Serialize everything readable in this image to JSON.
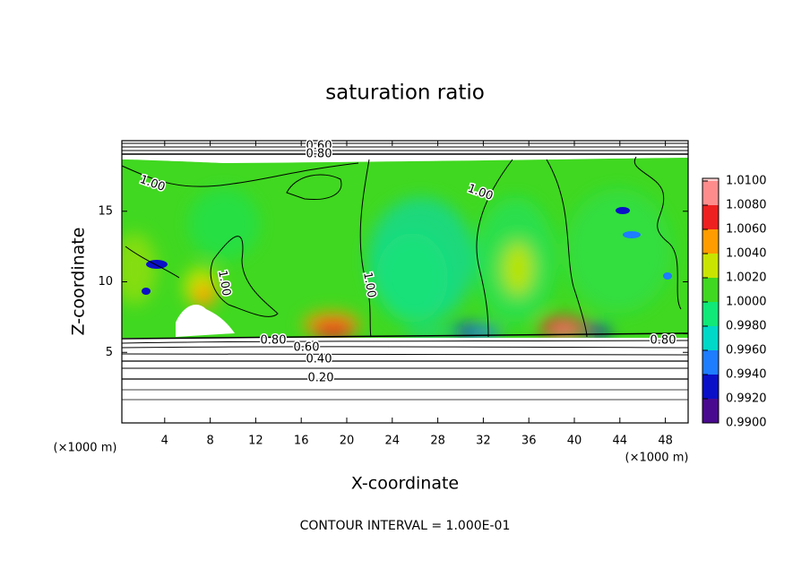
{
  "chart_data": {
    "type": "contour",
    "title": "saturation ratio",
    "x_label": "X-coordinate",
    "y_label": "Z-coordinate",
    "y_unit": "(×1000 m)",
    "x_unit": "(×1000 m)",
    "xlim": [
      0,
      50
    ],
    "xticks": [
      4,
      8,
      12,
      16,
      20,
      24,
      28,
      32,
      36,
      40,
      44,
      48
    ],
    "ylim": [
      0,
      20
    ],
    "yticks": [
      5,
      10,
      15
    ],
    "colorbar": {
      "levels": [
        {
          "value": 0.99,
          "label": "0.9900"
        },
        {
          "value": 0.992,
          "label": "0.9920"
        },
        {
          "value": 0.994,
          "label": "0.9940"
        },
        {
          "value": 0.996,
          "label": "0.9960"
        },
        {
          "value": 0.998,
          "label": "0.9980"
        },
        {
          "value": 1.0,
          "label": "1.0000"
        },
        {
          "value": 1.002,
          "label": "1.0020"
        },
        {
          "value": 1.004,
          "label": "1.0040"
        },
        {
          "value": 1.006,
          "label": "1.0060"
        },
        {
          "value": 1.008,
          "label": "1.0080"
        },
        {
          "value": 1.01,
          "label": "1.0100"
        }
      ],
      "colors": [
        "#4a0a90",
        "#0a10c8",
        "#1e7cff",
        "#00d8c8",
        "#10e878",
        "#40d820",
        "#c8e400",
        "#ff9c00",
        "#ee2020",
        "#ff8c8c"
      ]
    },
    "contour_levels": [
      {
        "value": 0.2,
        "label": "0.20"
      },
      {
        "value": 0.4,
        "label": "0.40"
      },
      {
        "value": 0.6,
        "label": "0.60"
      },
      {
        "value": 0.8,
        "label": "0.80"
      },
      {
        "value": 1.0,
        "label": "1.00"
      }
    ],
    "contour_interval": "CONTOUR INTERVAL = 1.000E-01"
  }
}
